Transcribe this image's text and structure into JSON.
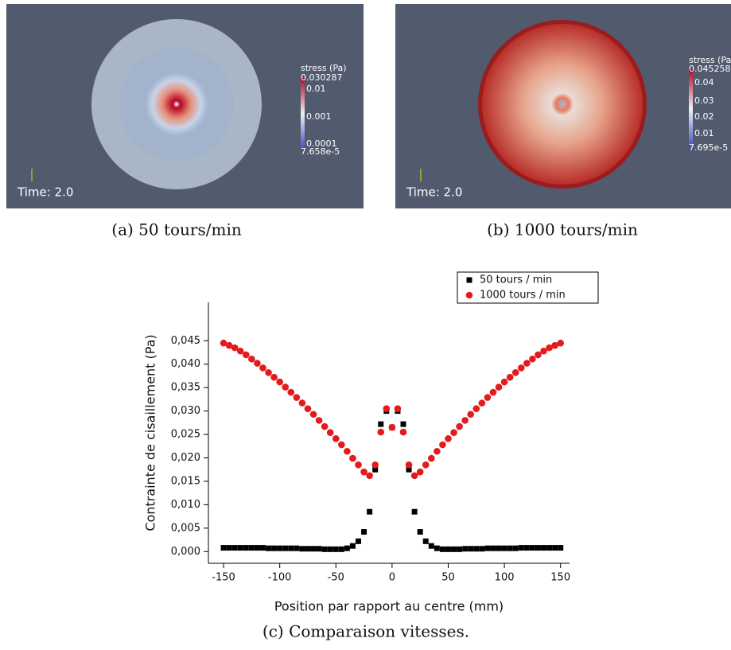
{
  "panels": [
    {
      "caption": "(a) 50 tours/min",
      "legend_title": "stress (Pa)",
      "labels": [
        "0.030287",
        "0.01",
        "0.001",
        "0.0001",
        "7.658e-5"
      ],
      "time": "Time: 2.0"
    },
    {
      "caption": "(b) 1000 tours/min",
      "legend_title": "stress (Pa)",
      "labels": [
        "0.045258",
        "0.04",
        "0.03",
        "0.02",
        "0.01",
        "7.695e-5"
      ],
      "time": "Time: 2.0"
    }
  ],
  "chart_data": {
    "type": "scatter",
    "caption": "(c) Comparaison vitesses.",
    "x_label": "Position par rapport au centre (mm)",
    "y_label": "Contrainte de cisaillement (Pa)",
    "x": [
      -150,
      -145,
      -140,
      -135,
      -130,
      -125,
      -120,
      -115,
      -110,
      -105,
      -100,
      -95,
      -90,
      -85,
      -80,
      -75,
      -70,
      -65,
      -60,
      -55,
      -50,
      -45,
      -40,
      -35,
      -30,
      -25,
      -20,
      -15,
      -10,
      -5,
      0,
      5,
      10,
      15,
      20,
      25,
      30,
      35,
      40,
      45,
      50,
      55,
      60,
      65,
      70,
      75,
      80,
      85,
      90,
      95,
      100,
      105,
      110,
      115,
      120,
      125,
      130,
      135,
      140,
      145,
      150
    ],
    "series": [
      {
        "name": "50 tours / min",
        "color": "#000000",
        "marker": "square",
        "values": [
          0.0008,
          0.0008,
          0.0008,
          0.0008,
          0.0008,
          0.0008,
          0.0008,
          0.0008,
          0.0007,
          0.0007,
          0.0007,
          0.0007,
          0.0007,
          0.0007,
          0.0006,
          0.0006,
          0.0006,
          0.0006,
          0.0005,
          0.0005,
          0.0005,
          0.0005,
          0.0007,
          0.0012,
          0.0022,
          0.0042,
          0.0085,
          0.0175,
          0.0272,
          0.03,
          0.0265,
          0.03,
          0.0272,
          0.0175,
          0.0085,
          0.0042,
          0.0022,
          0.0012,
          0.0007,
          0.0005,
          0.0005,
          0.0005,
          0.0005,
          0.0006,
          0.0006,
          0.0006,
          0.0006,
          0.0007,
          0.0007,
          0.0007,
          0.0007,
          0.0007,
          0.0007,
          0.0008,
          0.0008,
          0.0008,
          0.0008,
          0.0008,
          0.0008,
          0.0008,
          0.0008
        ]
      },
      {
        "name": "1000 tours / min",
        "color": "#e41a1c",
        "marker": "circle",
        "values": [
          0.0445,
          0.044,
          0.0435,
          0.0428,
          0.042,
          0.0411,
          0.0402,
          0.0392,
          0.0382,
          0.0372,
          0.0362,
          0.0351,
          0.034,
          0.0329,
          0.0317,
          0.0305,
          0.0293,
          0.028,
          0.0267,
          0.0254,
          0.0241,
          0.0228,
          0.0214,
          0.0199,
          0.0185,
          0.017,
          0.0162,
          0.0185,
          0.0255,
          0.0305,
          0.0265,
          0.0305,
          0.0255,
          0.0185,
          0.0162,
          0.017,
          0.0185,
          0.0199,
          0.0214,
          0.0228,
          0.0241,
          0.0254,
          0.0267,
          0.028,
          0.0293,
          0.0305,
          0.0317,
          0.0329,
          0.034,
          0.0351,
          0.0362,
          0.0372,
          0.0382,
          0.0392,
          0.0402,
          0.0411,
          0.042,
          0.0428,
          0.0435,
          0.044,
          0.0445
        ]
      }
    ],
    "xlim": [
      -163.5,
      158
    ],
    "ylim": [
      -0.0025,
      0.0532
    ],
    "xticks": [
      -150,
      -100,
      -50,
      0,
      50,
      100,
      150
    ],
    "yticks": [
      {
        "value": 0,
        "label": "0,000"
      },
      {
        "value": 0.005,
        "label": "0,005"
      },
      {
        "value": 0.01,
        "label": "0,010"
      },
      {
        "value": 0.015,
        "label": "0,015"
      },
      {
        "value": 0.02,
        "label": "0,020"
      },
      {
        "value": 0.025,
        "label": "0,025"
      },
      {
        "value": 0.03,
        "label": "0,030"
      },
      {
        "value": 0.035,
        "label": "0,035"
      },
      {
        "value": 0.04,
        "label": "0,040"
      },
      {
        "value": 0.045,
        "label": "0,045"
      }
    ],
    "legend": "upper right"
  }
}
